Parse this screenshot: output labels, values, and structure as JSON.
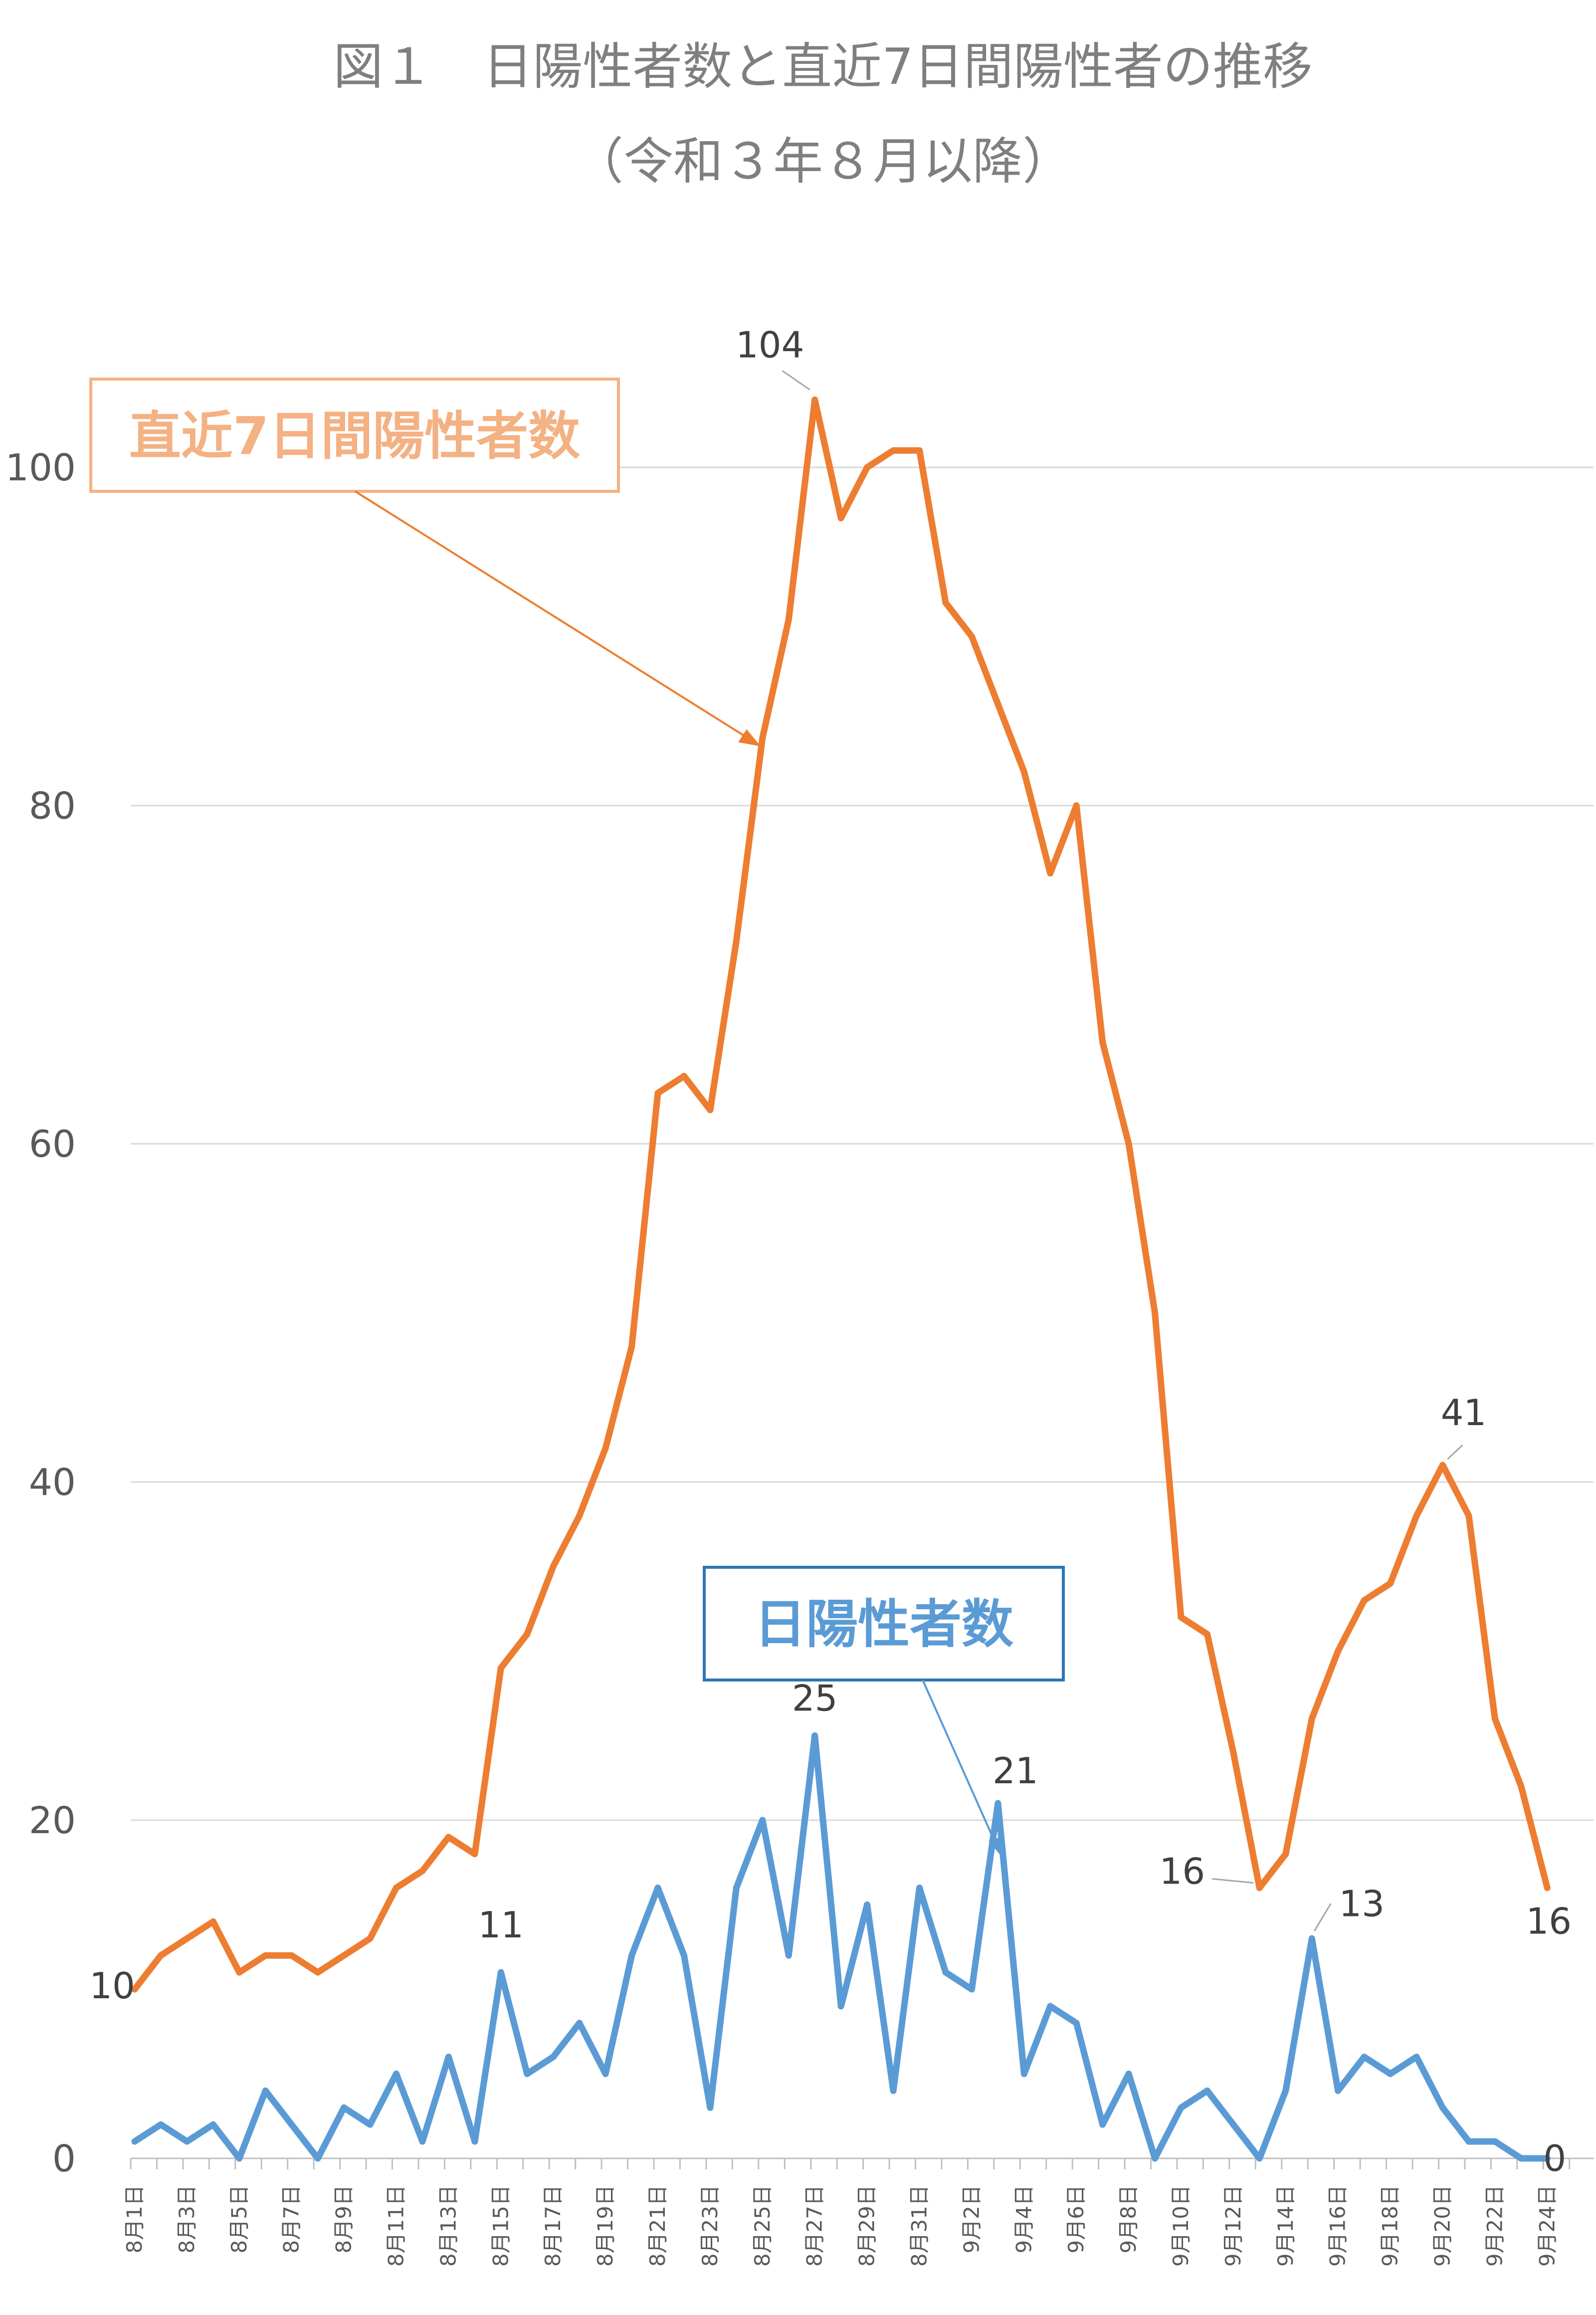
{
  "title": "図１　日陽性者数と直近7日間陽性者の推移",
  "subtitle": "（令和３年８月以降）",
  "chart_data": {
    "type": "line",
    "ylim": [
      0,
      105
    ],
    "yticks": [
      0,
      20,
      40,
      60,
      80,
      100
    ],
    "grid": true,
    "categories": [
      "8月1日",
      "8月2日",
      "8月3日",
      "8月4日",
      "8月5日",
      "8月6日",
      "8月7日",
      "8月8日",
      "8月9日",
      "8月10日",
      "8月11日",
      "8月12日",
      "8月13日",
      "8月14日",
      "8月15日",
      "8月16日",
      "8月17日",
      "8月18日",
      "8月19日",
      "8月20日",
      "8月21日",
      "8月22日",
      "8月23日",
      "8月24日",
      "8月25日",
      "8月26日",
      "8月27日",
      "8月28日",
      "8月29日",
      "8月30日",
      "8月31日",
      "9月1日",
      "9月2日",
      "9月3日",
      "9月4日",
      "9月5日",
      "9月6日",
      "9月7日",
      "9月8日",
      "9月9日",
      "9月10日",
      "9月11日",
      "9月12日",
      "9月13日",
      "9月14日",
      "9月15日",
      "9月16日",
      "9月17日",
      "9月18日",
      "9月19日",
      "9月20日",
      "9月21日",
      "9月22日",
      "9月23日",
      "9月24日"
    ],
    "tick_labels": [
      "8月1日",
      "8月3日",
      "8月5日",
      "8月7日",
      "8月9日",
      "8月11日",
      "8月13日",
      "8月15日",
      "8月17日",
      "8月19日",
      "8月21日",
      "8月23日",
      "8月25日",
      "8月27日",
      "8月29日",
      "8月31日",
      "9月2日",
      "9月4日",
      "9月6日",
      "9月8日",
      "9月10日",
      "9月12日",
      "9月14日",
      "9月16日",
      "9月18日",
      "9月20日",
      "9月22日",
      "9月24日"
    ],
    "series": [
      {
        "name": "直近7日間陽性者数",
        "color": "#ed7d31",
        "values": [
          10,
          12,
          13,
          14,
          11,
          12,
          12,
          11,
          12,
          13,
          16,
          17,
          19,
          18,
          29,
          31,
          35,
          38,
          42,
          48,
          63,
          64,
          62,
          72,
          84,
          91,
          104,
          97,
          100,
          101,
          101,
          92,
          90,
          86,
          82,
          76,
          80,
          66,
          60,
          50,
          32,
          31,
          24,
          16,
          18,
          26,
          30,
          33,
          34,
          38,
          41,
          38,
          26,
          22,
          16
        ],
        "labels": [
          {
            "index": 0,
            "text": "10"
          },
          {
            "index": 26,
            "text": "104"
          },
          {
            "index": 43,
            "text": "16"
          },
          {
            "index": 50,
            "text": "41"
          },
          {
            "index": 54,
            "text": "16"
          }
        ]
      },
      {
        "name": "日陽性者数",
        "color": "#5b9bd5",
        "values": [
          1,
          2,
          1,
          2,
          0,
          4,
          2,
          0,
          3,
          2,
          5,
          1,
          6,
          1,
          11,
          5,
          6,
          8,
          5,
          12,
          16,
          12,
          3,
          16,
          20,
          12,
          25,
          9,
          15,
          4,
          16,
          11,
          10,
          21,
          5,
          9,
          8,
          2,
          5,
          0,
          3,
          4,
          2,
          0,
          4,
          13,
          4,
          6,
          5,
          6,
          3,
          1,
          1,
          0,
          0
        ],
        "labels": [
          {
            "index": 14,
            "text": "11"
          },
          {
            "index": 26,
            "text": "25"
          },
          {
            "index": 33,
            "text": "21"
          },
          {
            "index": 45,
            "text": "13"
          },
          {
            "index": 54,
            "text": "0"
          }
        ]
      }
    ]
  }
}
